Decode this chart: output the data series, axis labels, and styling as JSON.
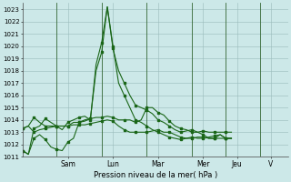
{
  "xlabel": "Pression niveau de la mer( hPa )",
  "bg_color": "#cce8e8",
  "grid_color": "#99bbbb",
  "line_color": "#1a6618",
  "ylim": [
    1011,
    1023.5
  ],
  "yticks": [
    1011,
    1012,
    1013,
    1014,
    1015,
    1016,
    1017,
    1018,
    1019,
    1020,
    1021,
    1022,
    1023
  ],
  "day_labels": [
    "Sam",
    "Lun",
    "Mar",
    "Mer",
    "Jeu",
    "V"
  ],
  "day_tick_pos": [
    8,
    16,
    24,
    32,
    38,
    44
  ],
  "day_vline_pos": [
    6,
    14,
    22,
    30,
    36,
    42
  ],
  "xlim": [
    0,
    47
  ],
  "series": [
    [
      1011.5,
      1011.2,
      1013.3,
      1013.5,
      1014.1,
      1013.8,
      1013.5,
      1013.2,
      1013.8,
      1014.0,
      1014.2,
      1014.3,
      1014.0,
      1018.5,
      1020.3,
      1023.2,
      1019.8,
      1018.0,
      1017.0,
      1016.0,
      1015.2,
      1015.0,
      1014.8,
      1014.5,
      1014.0,
      1013.8,
      1013.5,
      1013.2,
      1013.0,
      1013.1,
      1013.2,
      1013.0,
      1012.8,
      1012.5,
      1012.5,
      1012.8,
      1012.5,
      1012.5
    ],
    [
      1011.5,
      1011.2,
      1012.5,
      1012.8,
      1012.4,
      1011.8,
      1011.6,
      1011.5,
      1012.2,
      1012.5,
      1013.8,
      1013.9,
      1014.1,
      1018.0,
      1019.5,
      1023.2,
      1020.0,
      1017.0,
      1016.0,
      1015.0,
      1014.0,
      1013.8,
      1013.5,
      1013.2,
      1013.0,
      1012.8,
      1012.6,
      1012.5,
      1012.4,
      1012.5,
      1012.6,
      1012.5,
      1012.5,
      1012.6,
      1012.7,
      1012.8,
      1012.5,
      1012.5
    ],
    [
      1013.3,
      1013.5,
      1014.2,
      1013.8,
      1013.5,
      1013.5,
      1013.5,
      1013.5,
      1013.5,
      1013.8,
      1013.8,
      1014.0,
      1014.1,
      1014.2,
      1014.2,
      1014.3,
      1014.2,
      1014.0,
      1014.0,
      1014.0,
      1013.8,
      1014.0,
      1015.0,
      1015.0,
      1014.6,
      1014.4,
      1013.9,
      1013.5,
      1013.3,
      1013.2,
      1013.0,
      1013.0,
      1013.1,
      1013.0,
      1013.0,
      1013.0,
      1013.0,
      1013.0
    ],
    [
      1013.3,
      1013.5,
      1013.0,
      1013.2,
      1013.3,
      1013.4,
      1013.5,
      1013.5,
      1013.5,
      1013.6,
      1013.6,
      1013.6,
      1013.7,
      1013.8,
      1013.9,
      1014.0,
      1013.9,
      1013.5,
      1013.2,
      1013.0,
      1013.0,
      1013.0,
      1013.0,
      1013.1,
      1013.2,
      1013.0,
      1013.0,
      1012.8,
      1012.6,
      1012.5,
      1012.5,
      1012.6,
      1012.6,
      1012.5,
      1012.5,
      1012.5,
      1012.5,
      1012.5
    ]
  ]
}
